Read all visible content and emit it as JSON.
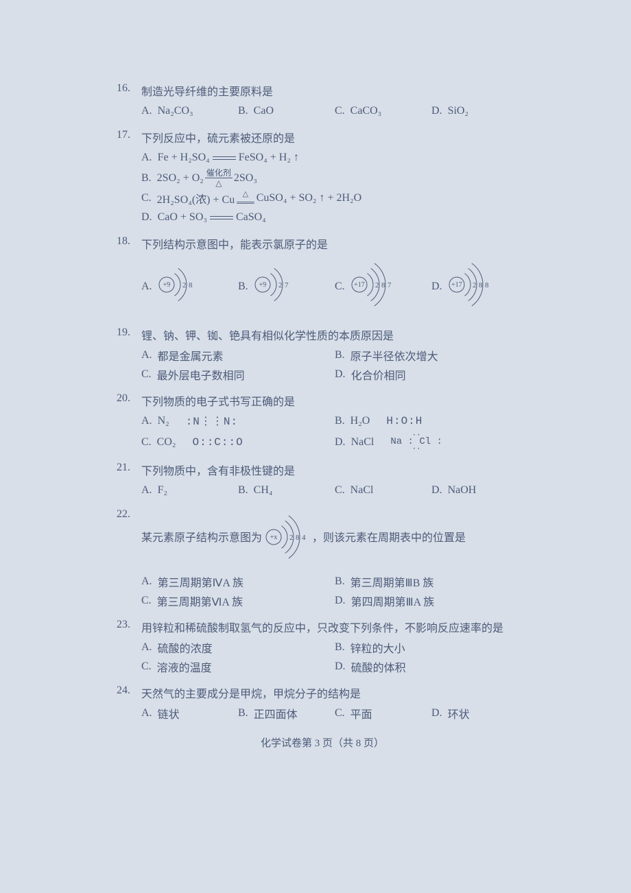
{
  "text_color": "#4d5b7a",
  "background_color": "#d8dfe8",
  "questions": {
    "q16": {
      "num": "16.",
      "text": "制造光导纤维的主要原料是",
      "A": "Na₂CO₃",
      "B": "CaO",
      "C": "CaCO₃",
      "D": "SiO₂"
    },
    "q17": {
      "num": "17.",
      "text": "下列反应中，硫元素被还原的是",
      "A_pre": "Fe + H₂SO₄",
      "A_post": "FeSO₄ + H₂ ↑",
      "B_pre": "2SO₂ + O₂",
      "B_top": "催化剂",
      "B_bot": "△",
      "B_post": "2SO₃",
      "C_pre": "2H₂SO₄(浓) + Cu",
      "C_top": "△",
      "C_post": "CuSO₄ + SO₂ ↑ + 2H₂O",
      "D_pre": "CaO + SO₃",
      "D_post": "CaSO₄"
    },
    "q18": {
      "num": "18.",
      "text": "下列结构示意图中，能表示氯原子的是",
      "diagrams": {
        "A": {
          "nucleus": "+9",
          "shells": [
            2,
            8
          ]
        },
        "B": {
          "nucleus": "+9",
          "shells": [
            2,
            7
          ]
        },
        "C": {
          "nucleus": "+17",
          "shells": [
            2,
            8,
            7
          ]
        },
        "D": {
          "nucleus": "+17",
          "shells": [
            2,
            8,
            8
          ]
        }
      }
    },
    "q19": {
      "num": "19.",
      "text": "锂、钠、钾、铷、铯具有相似化学性质的本质原因是",
      "A": "都是金属元素",
      "B": "原子半径依次增大",
      "C": "最外层电子数相同",
      "D": "化合价相同"
    },
    "q20": {
      "num": "20.",
      "text": "下列物质的电子式书写正确的是",
      "A_l": "N₂",
      "A_r": ":N⋮⋮N:",
      "B_l": "H₂O",
      "B_r": "H:O:H",
      "C_l": "CO₂",
      "C_r": "O::C::O",
      "D_l": "NaCl",
      "D_r_top": "··",
      "D_r_mid": "Na : Cl :",
      "D_r_bot": "··"
    },
    "q21": {
      "num": "21.",
      "text": "下列物质中，含有非极性键的是",
      "A": "F₂",
      "B": "CH₄",
      "C": "NaCl",
      "D": "NaOH"
    },
    "q22": {
      "num": "22.",
      "text_pre": "某元素原子结构示意图为",
      "diagram": {
        "nucleus": "+x",
        "shells": [
          2,
          8,
          4
        ]
      },
      "text_post": "，则该元素在周期表中的位置是",
      "A": "第三周期第ⅣA 族",
      "B": "第三周期第ⅢB 族",
      "C": "第三周期第ⅥA 族",
      "D": "第四周期第ⅢA 族"
    },
    "q23": {
      "num": "23.",
      "text": "用锌粒和稀硫酸制取氢气的反应中，只改变下列条件，不影响反应速率的是",
      "A": "硫酸的浓度",
      "B": "锌粒的大小",
      "C": "溶液的温度",
      "D": "硫酸的体积"
    },
    "q24": {
      "num": "24.",
      "text": "天然气的主要成分是甲烷，甲烷分子的结构是",
      "A": "链状",
      "B": "正四面体",
      "C": "平面",
      "D": "环状"
    }
  },
  "labels": {
    "A": "A.",
    "B": "B.",
    "C": "C.",
    "D": "D."
  },
  "footer": "化学试卷第 3 页（共 8 页）",
  "bohr_style": {
    "nucleus_radius": 11,
    "shell_gap": 9,
    "stroke": "#4d5b7a",
    "stroke_width": 1,
    "font_size_nucleus": 10,
    "font_size_shell": 11
  }
}
